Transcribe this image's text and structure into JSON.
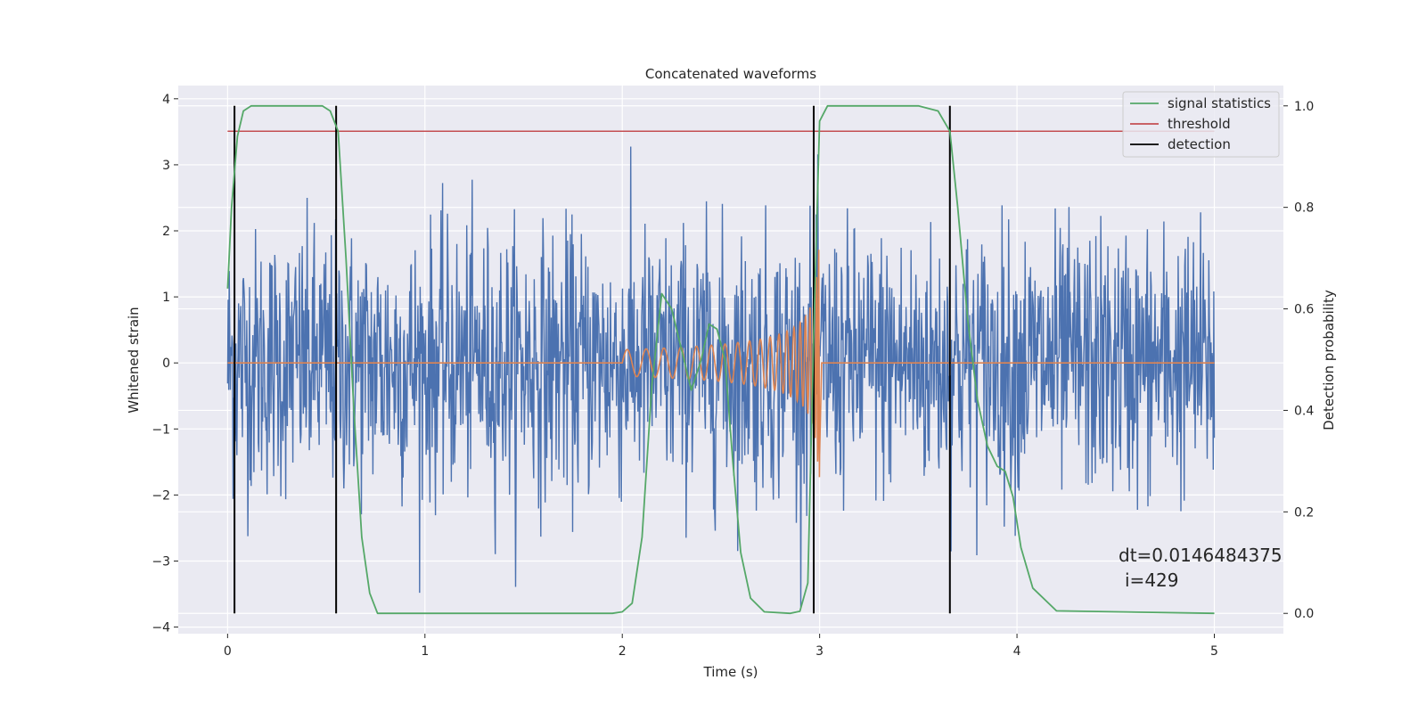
{
  "chart_data": {
    "type": "line",
    "title": "Concatenated waveforms",
    "xlabel": "Time (s)",
    "ylabel": "Whitened strain",
    "ylabel_right": "Detection probability",
    "xlim": [
      -0.25,
      5.35
    ],
    "ylim": [
      -4.1,
      4.2
    ],
    "ylim_right": [
      -0.04,
      1.04
    ],
    "x_ticks": [
      0,
      1,
      2,
      3,
      4,
      5
    ],
    "y_ticks": [
      -4,
      -3,
      -2,
      -1,
      0,
      1,
      2,
      3,
      4
    ],
    "y_ticks_right": [
      0.0,
      0.2,
      0.4,
      0.6,
      0.8,
      1.0
    ],
    "grid": true,
    "legend_position": "top-right",
    "series": [
      {
        "type": "noise",
        "description_axis": "left",
        "x_range": [
          0,
          5
        ],
        "typical_amplitude": 1.0,
        "peak_amplitude": 3.3,
        "color": "#4c72b0"
      },
      {
        "type": "chirp",
        "axis": "left",
        "x_start": 2.0,
        "x_end": 3.0,
        "start_amplitude": 0.2,
        "peak_amplitude": 1.8,
        "color": "#dd8452"
      },
      {
        "name": "signal statistics",
        "axis": "right",
        "color": "#55a868",
        "x": [
          0.0,
          0.02,
          0.05,
          0.08,
          0.12,
          0.48,
          0.52,
          0.56,
          0.6,
          0.64,
          0.68,
          0.72,
          0.76,
          1.95,
          2.0,
          2.05,
          2.1,
          2.15,
          2.2,
          2.25,
          2.3,
          2.35,
          2.4,
          2.44,
          2.48,
          2.52,
          2.56,
          2.6,
          2.65,
          2.72,
          2.85,
          2.9,
          2.94,
          2.97,
          3.0,
          3.04,
          3.5,
          3.6,
          3.66,
          3.7,
          3.75,
          3.8,
          3.85,
          3.9,
          3.94,
          3.98,
          4.02,
          4.08,
          4.2,
          5.0
        ],
        "y": [
          0.64,
          0.8,
          0.94,
          0.99,
          1.0,
          1.0,
          0.99,
          0.95,
          0.7,
          0.4,
          0.15,
          0.04,
          0.0,
          0.0,
          0.003,
          0.02,
          0.15,
          0.45,
          0.63,
          0.6,
          0.52,
          0.44,
          0.5,
          0.57,
          0.56,
          0.5,
          0.3,
          0.12,
          0.03,
          0.003,
          0.0,
          0.004,
          0.06,
          0.55,
          0.97,
          1.0,
          1.0,
          0.99,
          0.95,
          0.8,
          0.58,
          0.42,
          0.33,
          0.29,
          0.28,
          0.23,
          0.13,
          0.05,
          0.005,
          0.0
        ]
      },
      {
        "name": "threshold",
        "axis": "right",
        "color": "#c44e52",
        "x": [
          0,
          5
        ],
        "y": [
          0.95,
          0.95
        ]
      },
      {
        "name": "detection",
        "axis": "right",
        "color": "#000000",
        "vlines": [
          0.035,
          0.55,
          2.97,
          3.66
        ],
        "ymin": 0,
        "ymax": 1
      }
    ],
    "annotation": [
      "dt=0.0146484375",
      "i=429"
    ]
  }
}
